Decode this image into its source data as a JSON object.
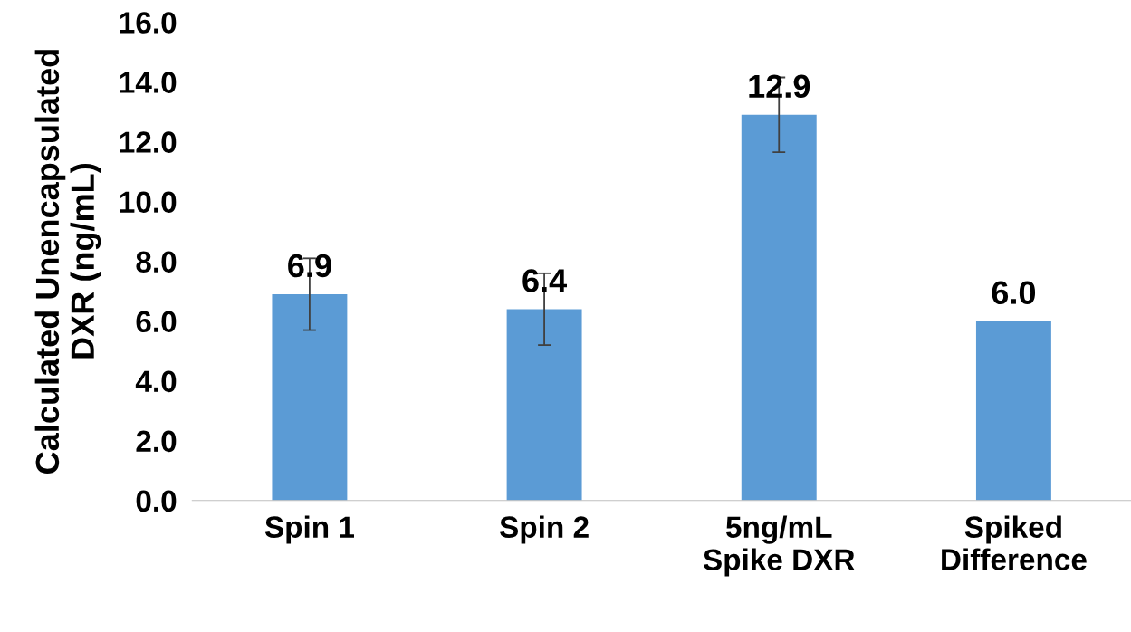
{
  "chart_data": {
    "type": "bar",
    "ylabel": "Calculated Unencapsulated\nDXR (ng/mL)",
    "categories": [
      "Spin 1",
      "Spin 2",
      "5ng/mL\nSpike DXR",
      "Spiked\nDifference"
    ],
    "values": [
      6.9,
      6.4,
      12.9,
      6.0
    ],
    "errors": [
      1.2,
      1.2,
      1.25,
      null
    ],
    "value_labels": [
      "6.9",
      "6.4",
      "12.9",
      "6.0"
    ],
    "color": "#5b9bd5",
    "ylim": [
      0,
      16
    ],
    "yticks": [
      {
        "value": 0,
        "label": "0.0"
      },
      {
        "value": 2,
        "label": "2.0"
      },
      {
        "value": 4,
        "label": "4.0"
      },
      {
        "value": 6,
        "label": "6.0"
      },
      {
        "value": 8,
        "label": "8.0"
      },
      {
        "value": 10,
        "label": "10.0"
      },
      {
        "value": 12,
        "label": "12.0"
      },
      {
        "value": 14,
        "label": "14.0"
      },
      {
        "value": 16,
        "label": "16.0"
      }
    ],
    "grid": false
  }
}
